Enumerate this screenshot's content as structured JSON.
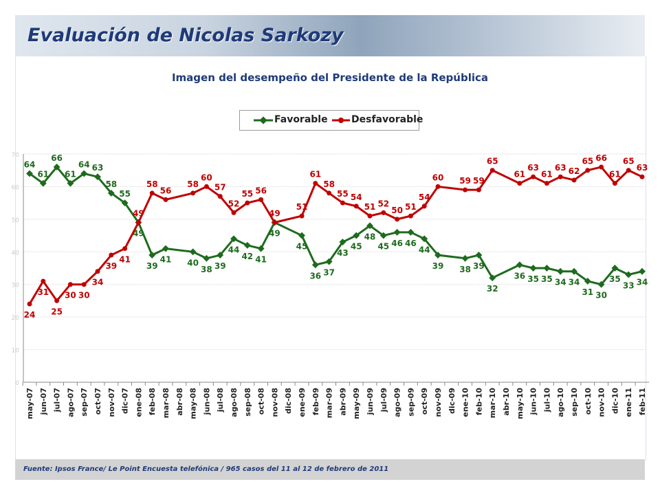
{
  "header": {
    "title": "Evaluación de Nicolas Sarkozy"
  },
  "footer": {
    "source": "Fuente:  Ipsos France/ Le Point Encuesta telefónica / 965 casos del 11 al 12 de febrero de 2011"
  },
  "colors": {
    "favorable": "#1e6b1e",
    "desfavorable": "#c00000"
  },
  "chart_data": {
    "type": "line",
    "title": "Imagen del desempeño del Presidente de la República",
    "xlabel": "",
    "ylabel": "",
    "ylim": [
      0,
      70
    ],
    "yticks": [
      0,
      10,
      20,
      30,
      40,
      50,
      60,
      70
    ],
    "grid": true,
    "legend": "top-center",
    "categories": [
      "may-07",
      "jun-07",
      "jul-07",
      "ago-07",
      "sep-07",
      "oct-07",
      "nov-07",
      "dic-07",
      "ene-08",
      "feb-08",
      "mar-08",
      "abr-08",
      "may-08",
      "jun-08",
      "jul-08",
      "ago-08",
      "sep-08",
      "oct-08",
      "nov-08",
      "dic-08",
      "ene-09",
      "feb-09",
      "mar-09",
      "abr-09",
      "may-09",
      "jun-09",
      "jul-09",
      "ago-09",
      "sep-09",
      "oct-09",
      "nov-09",
      "dic-09",
      "ene-10",
      "feb-10",
      "mar-10",
      "abr-10",
      "may-10",
      "jun-10",
      "jul-10",
      "ago-10",
      "sep-10",
      "oct-10",
      "nov-10",
      "dic-10",
      "ene-11",
      "feb-11"
    ],
    "series": [
      {
        "name": "Favorable",
        "values": [
          64,
          61,
          66,
          61,
          64,
          63,
          58,
          55,
          49,
          39,
          41,
          null,
          40,
          38,
          39,
          44,
          42,
          41,
          49,
          null,
          45,
          36,
          37,
          43,
          45,
          48,
          45,
          46,
          46,
          44,
          39,
          null,
          38,
          39,
          32,
          null,
          36,
          35,
          35,
          34,
          34,
          31,
          30,
          35,
          33,
          34
        ]
      },
      {
        "name": "Desfavorable",
        "values": [
          24,
          31,
          25,
          30,
          30,
          34,
          39,
          41,
          49,
          58,
          56,
          null,
          58,
          60,
          57,
          52,
          55,
          56,
          49,
          null,
          51,
          61,
          58,
          55,
          54,
          51,
          52,
          50,
          51,
          54,
          60,
          null,
          59,
          59,
          65,
          null,
          61,
          63,
          61,
          63,
          62,
          65,
          66,
          61,
          65,
          63
        ]
      }
    ]
  }
}
